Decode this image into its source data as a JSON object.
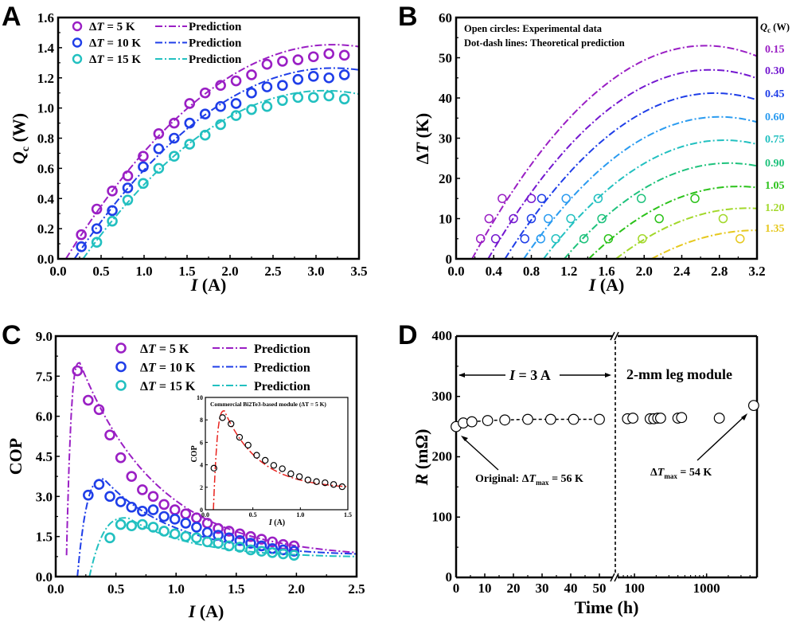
{
  "chart_data": [
    {
      "panel": "A",
      "type": "scatter",
      "xlabel": "I (A)",
      "ylabel": "Qc (W)",
      "xlim": [
        0,
        3.5
      ],
      "ylim": [
        0,
        1.6
      ],
      "xticks": [
        0.0,
        0.5,
        1.0,
        1.5,
        2.0,
        2.5,
        3.0,
        3.5
      ],
      "yticks": [
        0.0,
        0.2,
        0.4,
        0.6,
        0.8,
        1.0,
        1.2,
        1.4,
        1.6
      ],
      "xtick_labels": [
        "0.0",
        "0.5",
        "1.0",
        "1.5",
        "2.0",
        "2.5",
        "3.0",
        "3.5"
      ],
      "ytick_labels": [
        "0.0",
        "0.2",
        "0.4",
        "0.6",
        "0.8",
        "1.0",
        "1.2",
        "1.4",
        "1.6"
      ],
      "legend_position": "top-left",
      "series": [
        {
          "name": "ΔT = 5 K",
          "prediction_label": "Prediction",
          "color": "#9a1fc4",
          "x": [
            0.27,
            0.45,
            0.63,
            0.81,
            0.99,
            1.17,
            1.35,
            1.53,
            1.71,
            1.89,
            2.07,
            2.25,
            2.43,
            2.61,
            2.79,
            2.97,
            3.15,
            3.33
          ],
          "y": [
            0.16,
            0.33,
            0.45,
            0.55,
            0.68,
            0.83,
            0.9,
            1.03,
            1.1,
            1.15,
            1.18,
            1.22,
            1.29,
            1.31,
            1.32,
            1.34,
            1.36,
            1.35
          ],
          "prediction": {
            "x0": 0.09,
            "peak_x": 3.2,
            "peak_y": 1.42,
            "x_end": 3.5,
            "y_end": 1.41
          }
        },
        {
          "name": "ΔT = 10 K",
          "prediction_label": "Prediction",
          "color": "#1f3ee8",
          "x": [
            0.27,
            0.45,
            0.63,
            0.81,
            0.99,
            1.17,
            1.35,
            1.53,
            1.71,
            1.89,
            2.07,
            2.25,
            2.43,
            2.61,
            2.79,
            2.97,
            3.15,
            3.33
          ],
          "y": [
            0.08,
            0.2,
            0.32,
            0.47,
            0.61,
            0.73,
            0.8,
            0.9,
            0.96,
            1.01,
            1.03,
            1.1,
            1.14,
            1.15,
            1.19,
            1.21,
            1.2,
            1.22
          ],
          "prediction": {
            "x0": 0.19,
            "peak_x": 3.2,
            "peak_y": 1.265,
            "x_end": 3.5,
            "y_end": 1.25
          }
        },
        {
          "name": "ΔT = 15 K",
          "prediction_label": "Prediction",
          "color": "#22c0c0",
          "x": [
            0.45,
            0.63,
            0.81,
            0.99,
            1.17,
            1.35,
            1.53,
            1.71,
            1.89,
            2.07,
            2.25,
            2.43,
            2.61,
            2.79,
            2.97,
            3.15,
            3.33
          ],
          "y": [
            0.11,
            0.25,
            0.39,
            0.5,
            0.6,
            0.68,
            0.76,
            0.82,
            0.89,
            0.95,
            0.99,
            1.01,
            1.05,
            1.07,
            1.07,
            1.08,
            1.06
          ],
          "prediction": {
            "x0": 0.29,
            "peak_x": 3.1,
            "peak_y": 1.115,
            "x_end": 3.5,
            "y_end": 1.095
          }
        }
      ]
    },
    {
      "panel": "B",
      "type": "scatter",
      "xlabel": "I (A)",
      "ylabel": "ΔT (K)",
      "xlim": [
        0,
        3.2
      ],
      "ylim": [
        0,
        60
      ],
      "xticks": [
        0.0,
        0.4,
        0.8,
        1.2,
        1.6,
        2.0,
        2.4,
        2.8,
        3.2
      ],
      "yticks": [
        0,
        10,
        20,
        30,
        40,
        50,
        60
      ],
      "xtick_labels": [
        "0.0",
        "0.4",
        "0.8",
        "1.2",
        "1.6",
        "2.0",
        "2.4",
        "2.8",
        "3.2"
      ],
      "ytick_labels": [
        "0",
        "10",
        "20",
        "30",
        "40",
        "50",
        "60"
      ],
      "annotations": [
        "Open circles: Experimental data",
        "Dot-dash lines: Theoretical prediction"
      ],
      "right_legend_title": "Qc (W)",
      "series": [
        {
          "name": "0.15",
          "color": "#9a1fc4",
          "x": [
            0.26,
            0.35,
            0.49
          ],
          "y": [
            5,
            10,
            15
          ],
          "prediction": {
            "x0": 0.17,
            "peak_x": 2.65,
            "peak_y": 53,
            "y_end": 51.5
          }
        },
        {
          "name": "0.30",
          "color": "#7418d0",
          "x": [
            0.42,
            0.61,
            0.8
          ],
          "y": [
            5,
            10,
            15
          ],
          "prediction": {
            "x0": 0.34,
            "peak_x": 2.7,
            "peak_y": 47,
            "y_end": 46
          }
        },
        {
          "name": "0.45",
          "color": "#1f3ee8",
          "x": [
            0.73,
            0.8,
            0.91
          ],
          "y": [
            5,
            10,
            15
          ],
          "prediction": {
            "x0": 0.52,
            "peak_x": 2.75,
            "peak_y": 41.2,
            "y_end": 40.3
          }
        },
        {
          "name": "0.60",
          "color": "#2a9bf0",
          "x": [
            0.9,
            0.98,
            1.17
          ],
          "y": [
            5,
            10,
            15
          ],
          "prediction": {
            "x0": 0.72,
            "peak_x": 2.8,
            "peak_y": 35.3,
            "y_end": 34.7
          }
        },
        {
          "name": "0.75",
          "color": "#22c0c0",
          "x": [
            1.06,
            1.22,
            1.51
          ],
          "y": [
            5,
            10,
            15
          ],
          "prediction": {
            "x0": 0.93,
            "peak_x": 2.85,
            "peak_y": 29.5,
            "y_end": 29
          }
        },
        {
          "name": "0.90",
          "color": "#1ec27c",
          "x": [
            1.36,
            1.55,
            1.97
          ],
          "y": [
            5,
            10,
            15
          ],
          "prediction": {
            "x0": 1.15,
            "peak_x": 2.9,
            "peak_y": 23.8,
            "y_end": 23.5
          }
        },
        {
          "name": "1.05",
          "color": "#2bc21a",
          "x": [
            1.62,
            2.16,
            2.54
          ],
          "y": [
            5,
            10,
            15
          ],
          "prediction": {
            "x0": 1.41,
            "peak_x": 3.0,
            "peak_y": 18,
            "y_end": 18
          }
        },
        {
          "name": "1.20",
          "color": "#a2d82a",
          "x": [
            1.98,
            2.84
          ],
          "y": [
            5,
            10
          ],
          "prediction": {
            "x0": 1.7,
            "peak_x": 3.1,
            "peak_y": 12.6,
            "y_end": 12.5
          }
        },
        {
          "name": "1.35",
          "color": "#e6c81e",
          "x": [
            3.02
          ],
          "y": [
            5
          ],
          "prediction": {
            "x0": 2.08,
            "peak_x": 3.2,
            "peak_y": 7.1,
            "y_end": 7.1
          }
        }
      ]
    },
    {
      "panel": "C",
      "type": "scatter",
      "xlabel": "I (A)",
      "ylabel": "COP",
      "xlim": [
        0,
        2.5
      ],
      "ylim": [
        0,
        9
      ],
      "xticks": [
        0.0,
        0.5,
        1.0,
        1.5,
        2.0,
        2.5
      ],
      "yticks": [
        0.0,
        1.5,
        3.0,
        4.5,
        6.0,
        7.5,
        9.0
      ],
      "xtick_labels": [
        "0.0",
        "0.5",
        "1.0",
        "1.5",
        "2.0",
        "2.5"
      ],
      "ytick_labels": [
        "0.0",
        "1.5",
        "3.0",
        "4.5",
        "6.0",
        "7.5",
        "9.0"
      ],
      "legend_position": "top-right",
      "series": [
        {
          "name": "ΔT = 5 K",
          "prediction_label": "Prediction",
          "color": "#9a1fc4",
          "x": [
            0.18,
            0.27,
            0.36,
            0.45,
            0.54,
            0.63,
            0.72,
            0.81,
            0.9,
            0.99,
            1.08,
            1.17,
            1.26,
            1.35,
            1.44,
            1.53,
            1.62,
            1.71,
            1.8,
            1.89,
            1.98
          ],
          "y": [
            7.7,
            6.6,
            6.25,
            5.3,
            4.45,
            3.75,
            3.25,
            3.0,
            2.7,
            2.5,
            2.35,
            2.2,
            2.0,
            1.8,
            1.7,
            1.6,
            1.5,
            1.4,
            1.3,
            1.2,
            1.15
          ],
          "prediction": {
            "x_start": 0.09,
            "y_start": 0.8,
            "peak_x": 0.2,
            "peak_y": 8.0,
            "x_end": 2.5,
            "y_end": 0.9
          }
        },
        {
          "name": "ΔT = 10 K",
          "prediction_label": "Prediction",
          "color": "#1f3ee8",
          "x": [
            0.27,
            0.36,
            0.45,
            0.54,
            0.63,
            0.72,
            0.81,
            0.9,
            0.99,
            1.08,
            1.17,
            1.26,
            1.35,
            1.44,
            1.53,
            1.62,
            1.71,
            1.8,
            1.89,
            1.98
          ],
          "y": [
            3.05,
            3.45,
            3.0,
            2.8,
            2.6,
            2.45,
            2.5,
            2.25,
            2.15,
            2.0,
            1.85,
            1.65,
            1.55,
            1.45,
            1.35,
            1.25,
            1.15,
            1.05,
            1.0,
            0.95
          ],
          "prediction": {
            "x_start": 0.18,
            "y_start": 0,
            "peak_x": 0.4,
            "peak_y": 3.65,
            "x_end": 2.5,
            "y_end": 0.85
          }
        },
        {
          "name": "ΔT = 15 K",
          "prediction_label": "Prediction",
          "color": "#22c0c0",
          "x": [
            0.45,
            0.54,
            0.63,
            0.72,
            0.81,
            0.9,
            0.99,
            1.08,
            1.17,
            1.26,
            1.35,
            1.44,
            1.53,
            1.62,
            1.71,
            1.8,
            1.89,
            1.98
          ],
          "y": [
            1.45,
            1.95,
            1.9,
            1.95,
            1.85,
            1.7,
            1.6,
            1.5,
            1.45,
            1.3,
            1.25,
            1.15,
            1.1,
            1.0,
            0.95,
            0.9,
            0.85,
            0.8
          ],
          "prediction": {
            "x_start": 0.28,
            "y_start": 0,
            "peak_x": 0.6,
            "peak_y": 2.2,
            "x_end": 2.5,
            "y_end": 0.75
          }
        }
      ],
      "inset": {
        "type": "scatter",
        "title": "Commercial Bi2Te3-based module (ΔT = 5 K)",
        "xlabel": "I (A)",
        "ylabel": "COP",
        "xlim": [
          0,
          1.5
        ],
        "ylim": [
          0,
          10
        ],
        "xticks": [
          0.0,
          0.5,
          1.0,
          1.5
        ],
        "yticks": [
          0,
          2,
          4,
          6,
          8,
          10
        ],
        "xtick_labels": [
          "0.0",
          "0.5",
          "1.0",
          "1.5"
        ],
        "ytick_labels": [
          "0",
          "2",
          "4",
          "6",
          "8",
          "10"
        ],
        "marker_color": "#000000",
        "line_color": "#e8231e",
        "x": [
          0.09,
          0.18,
          0.27,
          0.36,
          0.45,
          0.54,
          0.63,
          0.72,
          0.81,
          0.9,
          0.99,
          1.08,
          1.17,
          1.26,
          1.35,
          1.44
        ],
        "y": [
          3.7,
          8.2,
          7.65,
          6.45,
          5.75,
          4.85,
          4.4,
          3.95,
          3.65,
          3.2,
          2.95,
          2.65,
          2.5,
          2.4,
          2.25,
          2.05
        ],
        "prediction": {
          "x_start": 0.085,
          "y_start": 0,
          "peak_x": 0.2,
          "peak_y": 8.8,
          "x_end": 1.5,
          "y_end": 2.05
        }
      }
    },
    {
      "panel": "D",
      "type": "scatter",
      "xlabel": "Time (h)",
      "ylabel": "R (mΩ)",
      "ylim": [
        0,
        400
      ],
      "yticks": [
        0,
        100,
        200,
        300,
        400
      ],
      "ytick_labels": [
        "0",
        "100",
        "200",
        "300",
        "400"
      ],
      "x_segments": [
        {
          "scale": "linear",
          "range": [
            0,
            55
          ],
          "ticks": [
            0,
            10,
            20,
            30,
            40,
            50
          ],
          "tick_labels": [
            "0",
            "10",
            "20",
            "30",
            "40",
            "50"
          ]
        },
        {
          "scale": "log",
          "range": [
            60,
            5000
          ],
          "ticks": [
            100,
            1000
          ],
          "tick_labels": [
            "100",
            "1000"
          ]
        }
      ],
      "axis_break": true,
      "annotations": {
        "region_label": "2-mm leg module",
        "current_label": "I = 3 A",
        "original_label": "Original: ΔTmax = 56 K",
        "final_label": "ΔTmax = 54 K"
      },
      "series": [
        {
          "name": "linear-segment",
          "x": [
            0,
            2.5,
            5.5,
            11,
            17,
            25,
            33,
            41,
            50
          ],
          "y": [
            250,
            256,
            258,
            260,
            261,
            262,
            262,
            262,
            262
          ],
          "connected": true
        },
        {
          "name": "log-segment",
          "x": [
            80,
            95,
            165,
            185,
            210,
            230,
            400,
            450,
            1500,
            4500
          ],
          "y": [
            263,
            264,
            263,
            263,
            264,
            264,
            264,
            265,
            264,
            285
          ],
          "connected": false
        }
      ]
    }
  ],
  "labels": {
    "panel_a": "A",
    "panel_b": "B",
    "panel_c": "C",
    "panel_d": "D",
    "pred": "Prediction",
    "legA": [
      "5 K",
      "10 K",
      "15 K"
    ],
    "b_note1": "Open circles: Experimental data",
    "b_note2": "Dot-dash lines: Theoretical prediction",
    "b_qc_title": "(W)",
    "b_q": [
      "0.15",
      "0.30",
      "0.45",
      "0.60",
      "0.75",
      "0.90",
      "1.05",
      "1.20",
      "1.35"
    ],
    "inset_title": "Commercial Bi2Te3-based module (ΔT = 5 K)",
    "d_region": "2-mm leg module",
    "d_current": "= 3 A",
    "d_original": "Original: ΔT",
    "d_original_val": "= 56 K",
    "d_final_val": "= 54 K",
    "d_sub": "max",
    "axis_I": "(A)",
    "axis_W": "(W)",
    "axis_K": "(K)",
    "axis_cop": "COP",
    "axis_time": "Time (h)",
    "axis_r": "(mΩ)"
  }
}
